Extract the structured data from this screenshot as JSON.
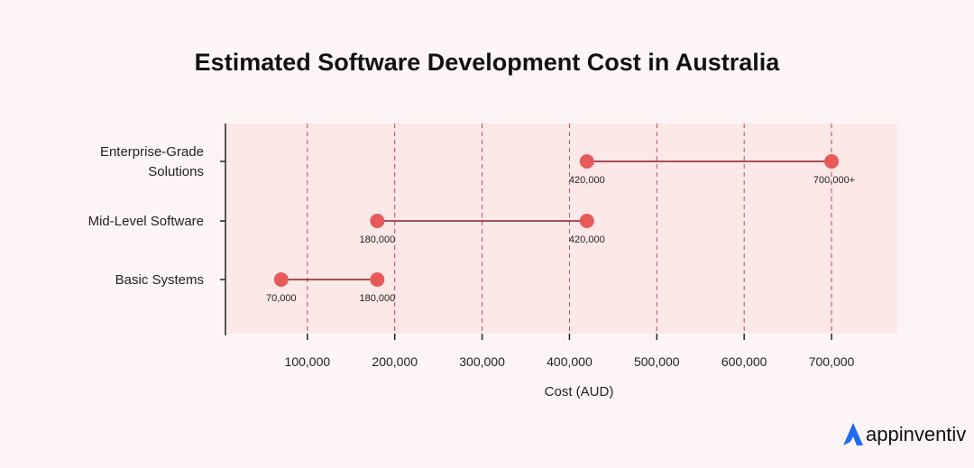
{
  "chart_data": {
    "type": "dumbbell",
    "title": "Estimated Software Development Cost in Australia",
    "xlabel": "Cost (AUD)",
    "ylabel": "",
    "xlim": [
      6000,
      770000
    ],
    "xticks": [
      100000,
      200000,
      300000,
      400000,
      500000,
      600000,
      700000
    ],
    "xtick_labels": [
      "100,000",
      "200,000",
      "300,000",
      "400,000",
      "500,000",
      "600,000",
      "700,000"
    ],
    "grid": "vertical dashed",
    "categories": [
      "Enterprise-Grade Solutions",
      "Mid-Level Software",
      "Basic Systems"
    ],
    "category_lines": [
      [
        "Enterprise-Grade",
        "Solutions"
      ],
      [
        "Mid-Level Software"
      ],
      [
        "Basic Systems"
      ]
    ],
    "ranges": [
      {
        "min": 420000,
        "max": 700000,
        "min_label": "420,000",
        "max_label": "700,000+"
      },
      {
        "min": 180000,
        "max": 420000,
        "min_label": "180,000",
        "max_label": "420,000"
      },
      {
        "min": 70000,
        "max": 180000,
        "min_label": "70,000",
        "max_label": "180,000"
      }
    ],
    "colors": {
      "dot": "#e85a5a",
      "line": "#8b1e1e",
      "grid": "#b8485a",
      "plot_bg": "#fde8e8",
      "page_bg": "#fdf5f5"
    }
  },
  "brand": {
    "name": "appinventiv",
    "color": "#1f6bf0"
  }
}
